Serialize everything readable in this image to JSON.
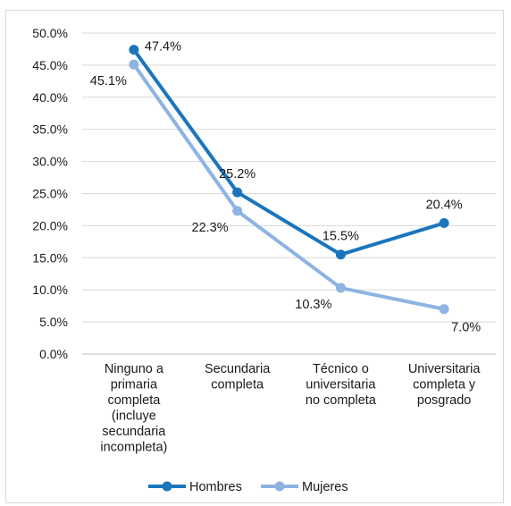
{
  "chart_data": {
    "type": "line",
    "title": "",
    "xlabel": "",
    "ylabel": "",
    "ylim": [
      0,
      50
    ],
    "y_ticks": [
      "0.0%",
      "5.0%",
      "10.0%",
      "15.0%",
      "20.0%",
      "25.0%",
      "30.0%",
      "35.0%",
      "40.0%",
      "45.0%",
      "50.0%"
    ],
    "y_unit": "%",
    "grid": "horizontal",
    "legend_position": "bottom",
    "categories": [
      [
        "Ninguno a",
        "primaria",
        "completa",
        "(incluye",
        "secundaria",
        "incompleta)"
      ],
      [
        "Secundaria",
        "completa"
      ],
      [
        "Técnico o",
        "universitaria",
        "no completa"
      ],
      [
        "Universitaria",
        "completa y",
        "posgrado"
      ]
    ],
    "series": [
      {
        "name": "Hombres",
        "color": "#1b75bc",
        "values": [
          47.4,
          25.2,
          15.5,
          20.4
        ],
        "labels": [
          "47.4%",
          "25.2%",
          "15.5%",
          "20.4%"
        ]
      },
      {
        "name": "Mujeres",
        "color": "#8db3e2",
        "values": [
          45.1,
          22.3,
          10.3,
          7.0
        ],
        "labels": [
          "45.1%",
          "22.3%",
          "10.3%",
          "7.0%"
        ]
      }
    ]
  }
}
